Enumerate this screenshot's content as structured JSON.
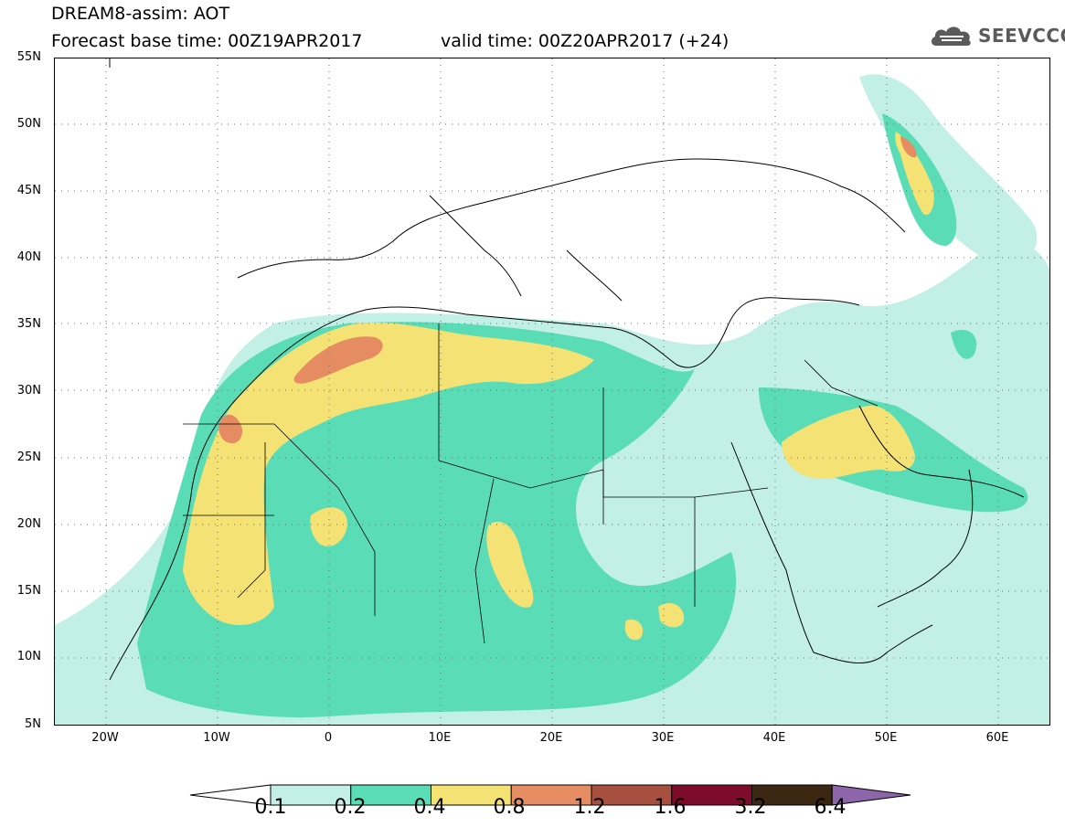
{
  "header": {
    "title": "DREAM8-assim: AOT",
    "base_time": "Forecast base time: 00Z19APR2017",
    "valid_time": "valid time: 00Z20APR2017 (+24)"
  },
  "logo": {
    "text": "SEEVCCC",
    "icon": "cloud-icon"
  },
  "map": {
    "lat_labels": [
      "55N",
      "50N",
      "45N",
      "40N",
      "35N",
      "30N",
      "25N",
      "20N",
      "15N",
      "10N",
      "5N"
    ],
    "lon_labels": [
      "20W",
      "10W",
      "0",
      "10E",
      "20E",
      "30E",
      "40E",
      "50E",
      "60E"
    ],
    "gridlines": "dotted"
  },
  "legend": {
    "labels": [
      "0.1",
      "0.2",
      "0.4",
      "0.8",
      "1.2",
      "1.6",
      "3.2",
      "6.4"
    ],
    "colors": [
      "#ffffff",
      "#c2f0e6",
      "#5adcb6",
      "#f5e275",
      "#e58c62",
      "#a8503f",
      "#7d0b2a",
      "#3c2712",
      "#8c66a8"
    ]
  }
}
